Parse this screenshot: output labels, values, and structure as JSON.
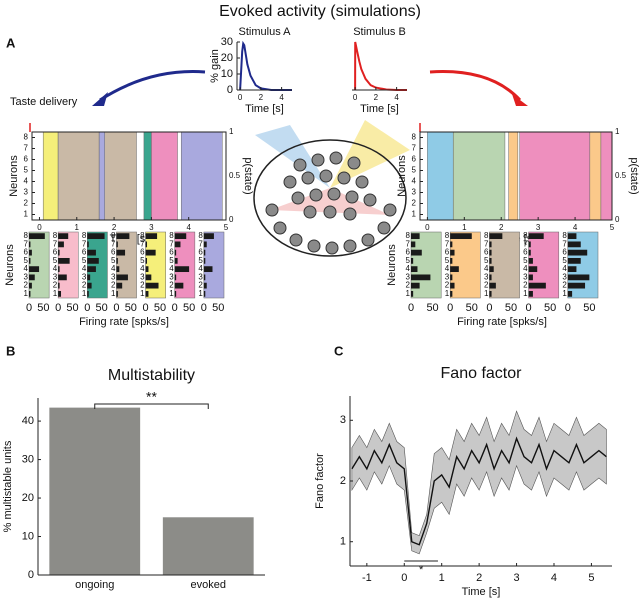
{
  "figure_title": "Evoked activity (simulations)",
  "panel_labels": [
    "A",
    "B",
    "C"
  ],
  "annotation": "Taste delivery",
  "chart_data": [
    {
      "type": "line",
      "title": "Stimulus A",
      "xlabel": "Time [s]",
      "ylabel": "% gain",
      "color": "#1f2a8c",
      "x": [
        0,
        0.1,
        0.2,
        0.3,
        0.4,
        0.5,
        0.7,
        1,
        1.5,
        2,
        3,
        4,
        5
      ],
      "values": [
        0,
        12,
        24,
        29,
        28,
        24,
        16,
        9,
        3,
        1,
        0,
        0,
        0
      ],
      "xlim": [
        -0.3,
        5
      ],
      "ylim": [
        0,
        30
      ],
      "xticks": [
        0,
        2,
        4
      ],
      "yticks": [
        0,
        10,
        20,
        30
      ]
    },
    {
      "type": "line",
      "title": "Stimulus B",
      "xlabel": "Time [s]",
      "color": "#e02020",
      "x": [
        0,
        0.01,
        0.2,
        0.4,
        0.6,
        0.8,
        1,
        1.5,
        2,
        3,
        4,
        5
      ],
      "values": [
        0,
        30,
        24,
        18,
        13,
        10,
        7,
        3,
        1.5,
        0.3,
        0,
        0
      ],
      "xlim": [
        -0.3,
        5
      ],
      "ylim": [
        0,
        30
      ],
      "xticks": [
        0,
        2,
        4
      ]
    },
    {
      "type": "raster",
      "xlabel": "Time [s]",
      "ylabel": "Neurons",
      "y2label": "p(state)",
      "xlim": [
        -0.2,
        5
      ],
      "xticks": [
        0,
        1,
        2,
        3,
        4,
        5
      ],
      "ylim": [
        0.5,
        8.5
      ],
      "yticks": [
        1,
        2,
        3,
        4,
        5,
        6,
        7,
        8
      ],
      "y2lim": [
        0,
        1
      ],
      "y2ticks": [
        0,
        0.5,
        1
      ],
      "states": [
        {
          "start": 0.1,
          "end": 0.5,
          "color": "#f5ef7a"
        },
        {
          "start": 0.5,
          "end": 1.6,
          "color": "#c9b9a6"
        },
        {
          "start": 1.6,
          "end": 1.75,
          "color": "#a9a9de"
        },
        {
          "start": 1.75,
          "end": 2.6,
          "color": "#c9b9a6"
        },
        {
          "start": 2.8,
          "end": 3.0,
          "color": "#3aa58e"
        },
        {
          "start": 3.0,
          "end": 3.7,
          "color": "#ee8fbe"
        },
        {
          "start": 3.8,
          "end": 4.9,
          "color": "#a9a9de"
        }
      ]
    },
    {
      "type": "barh-panels",
      "xlabel": "Firing rate [spks/s]",
      "ylabel": "Neurons",
      "xlim": [
        0,
        70
      ],
      "xticks": [
        0,
        50
      ],
      "yticks": [
        1,
        2,
        3,
        4,
        5,
        6,
        7,
        8
      ],
      "series": [
        {
          "color": "#b9d5b1",
          "values": [
            5,
            10,
            20,
            35,
            5,
            10,
            5,
            55
          ]
        },
        {
          "color": "#f8bccb",
          "values": [
            10,
            5,
            30,
            5,
            40,
            5,
            20,
            35
          ]
        },
        {
          "color": "#3aa58e",
          "values": [
            5,
            15,
            10,
            30,
            40,
            30,
            5,
            60
          ]
        },
        {
          "color": "#c9b9a6",
          "values": [
            5,
            20,
            40,
            10,
            5,
            30,
            5,
            45
          ]
        },
        {
          "color": "#f5ef7a",
          "values": [
            10,
            45,
            20,
            10,
            5,
            35,
            5,
            40
          ]
        },
        {
          "color": "#ee8fbe",
          "values": [
            5,
            30,
            5,
            50,
            10,
            5,
            20,
            40
          ]
        },
        {
          "color": "#a9a9de",
          "values": [
            5,
            10,
            5,
            30,
            5,
            5,
            10,
            35
          ]
        }
      ]
    },
    {
      "type": "raster",
      "xlabel": "Time [s]",
      "ylabel": "Neurons",
      "y2label": "p(state)",
      "xlim": [
        -0.2,
        5
      ],
      "xticks": [
        0,
        1,
        2,
        3,
        4,
        5
      ],
      "ylim": [
        0.5,
        8.5
      ],
      "yticks": [
        1,
        2,
        3,
        4,
        5,
        6,
        7,
        8
      ],
      "y2lim": [
        0,
        1
      ],
      "y2ticks": [
        0,
        0.5,
        1
      ],
      "states": [
        {
          "start": 0.0,
          "end": 0.7,
          "color": "#8fcbe6"
        },
        {
          "start": 0.7,
          "end": 2.1,
          "color": "#b9d5b1"
        },
        {
          "start": 2.2,
          "end": 2.45,
          "color": "#fbc98a"
        },
        {
          "start": 2.5,
          "end": 4.4,
          "color": "#ee8fbe"
        },
        {
          "start": 4.4,
          "end": 4.7,
          "color": "#fbc98a"
        },
        {
          "start": 4.7,
          "end": 5.0,
          "color": "#ee8fbe"
        }
      ]
    },
    {
      "type": "barh-panels",
      "xlabel": "Firing rate [spks/s]",
      "ylabel": "Neurons",
      "xlim": [
        0,
        70
      ],
      "xticks": [
        0,
        50
      ],
      "yticks": [
        1,
        2,
        3,
        4,
        5,
        6,
        7,
        8
      ],
      "series": [
        {
          "color": "#b9d5b1",
          "values": [
            5,
            20,
            45,
            15,
            5,
            25,
            10,
            20
          ]
        },
        {
          "color": "#fbc98a",
          "values": [
            5,
            10,
            5,
            20,
            5,
            10,
            5,
            50
          ]
        },
        {
          "color": "#c9b9a6",
          "values": [
            5,
            15,
            5,
            10,
            5,
            5,
            5,
            30
          ]
        },
        {
          "color": "#ee8fbe",
          "values": [
            10,
            40,
            10,
            20,
            10,
            5,
            5,
            35
          ]
        },
        {
          "color": "#8fcbe6",
          "values": [
            10,
            40,
            50,
            20,
            30,
            45,
            30,
            20
          ]
        }
      ]
    },
    {
      "type": "bar",
      "title": "Multistability",
      "ylabel": "% multistable units",
      "color": "#8c8c88",
      "categories": [
        "ongoing",
        "evoked"
      ],
      "values": [
        43.5,
        15
      ],
      "ylim": [
        0,
        46
      ],
      "yticks": [
        0,
        10,
        20,
        30,
        40
      ],
      "significance": "**"
    },
    {
      "type": "line",
      "title": "Fano factor",
      "xlabel": "Time [s]",
      "ylabel": "Fano factor",
      "color": "#111111",
      "band_color": "#c8c8c8",
      "x": [
        -1.4,
        -1.2,
        -1.0,
        -0.8,
        -0.6,
        -0.4,
        -0.2,
        0,
        0.2,
        0.4,
        0.6,
        0.8,
        1.0,
        1.2,
        1.4,
        1.6,
        1.8,
        2.0,
        2.2,
        2.4,
        2.6,
        2.8,
        3.0,
        3.2,
        3.4,
        3.6,
        3.8,
        4.0,
        4.2,
        4.4,
        4.6,
        4.8,
        5.0,
        5.2,
        5.4
      ],
      "values": [
        2.2,
        2.4,
        2.2,
        2.5,
        2.3,
        2.6,
        2.3,
        2.2,
        1.0,
        0.95,
        1.3,
        2.0,
        2.1,
        1.9,
        2.4,
        2.2,
        2.5,
        2.3,
        2.6,
        2.2,
        2.5,
        2.3,
        2.7,
        2.4,
        2.3,
        2.6,
        2.2,
        2.5,
        2.4,
        2.3,
        2.6,
        2.3,
        2.4,
        2.5,
        2.4
      ],
      "lower": [
        1.85,
        2.05,
        1.85,
        2.15,
        1.95,
        2.25,
        1.95,
        1.85,
        0.85,
        0.8,
        1.15,
        1.55,
        1.65,
        1.45,
        1.95,
        1.75,
        2.05,
        1.85,
        2.15,
        1.75,
        2.05,
        1.85,
        2.25,
        1.95,
        1.85,
        2.15,
        1.75,
        2.05,
        1.95,
        1.85,
        2.15,
        1.85,
        1.95,
        2.05,
        1.95
      ],
      "upper": [
        2.55,
        2.75,
        2.55,
        2.85,
        2.65,
        2.95,
        2.65,
        2.55,
        1.15,
        1.1,
        1.45,
        2.45,
        2.55,
        2.35,
        2.85,
        2.65,
        2.95,
        2.75,
        3.05,
        2.65,
        2.95,
        2.75,
        3.15,
        2.85,
        2.75,
        3.05,
        2.65,
        2.95,
        2.85,
        2.75,
        3.05,
        2.75,
        2.85,
        2.95,
        2.85
      ],
      "xlim": [
        -1.45,
        5.55
      ],
      "ylim": [
        0.6,
        3.4
      ],
      "xticks": [
        -1,
        0,
        1,
        2,
        3,
        4,
        5
      ],
      "yticks": [
        1,
        2,
        3
      ],
      "significance": "*",
      "significance_interval": [
        0,
        0.9
      ]
    }
  ]
}
